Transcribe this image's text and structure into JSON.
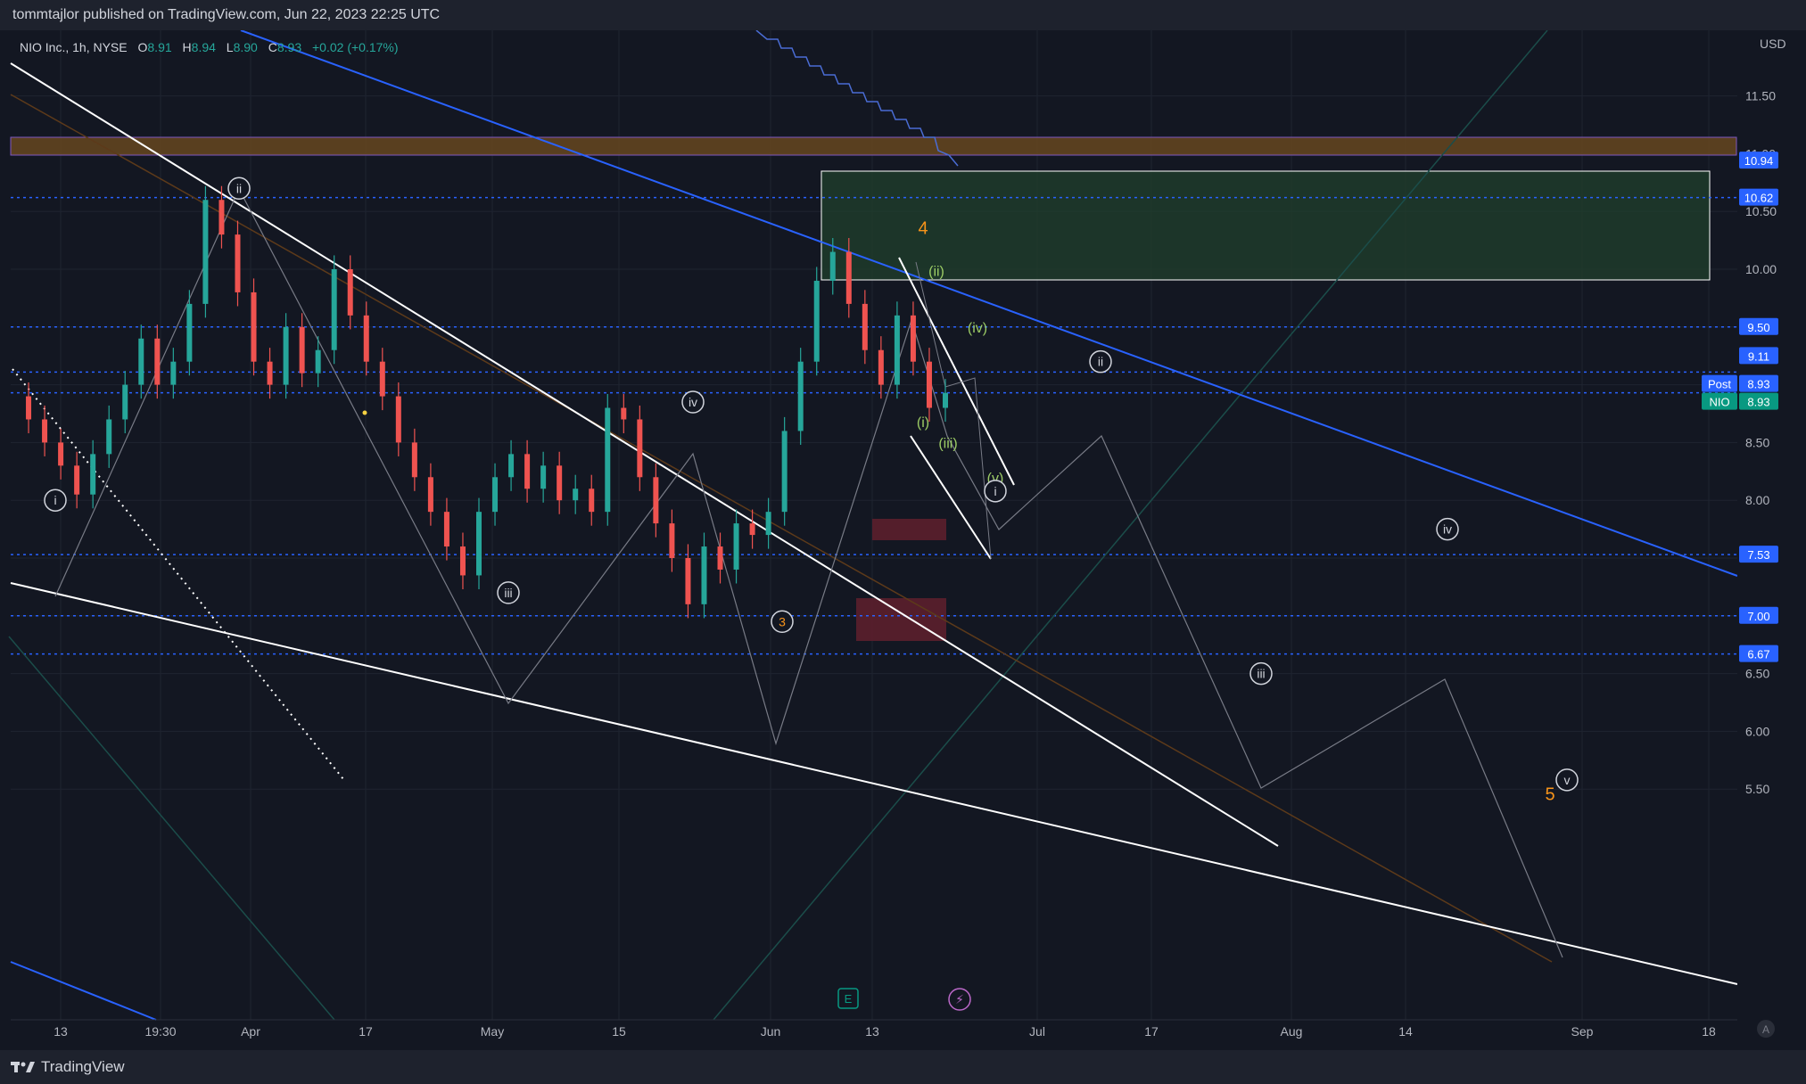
{
  "publisher_line": "tommtajlor published on TradingView.com, Jun 22, 2023 22:25 UTC",
  "footer_brand": "TradingView",
  "legend": {
    "symbol": "NIO Inc., 1h, NYSE",
    "o_label": "O",
    "o_value": "8.91",
    "h_label": "H",
    "h_value": "8.94",
    "l_label": "L",
    "l_value": "8.90",
    "c_label": "C",
    "c_value": "8.93",
    "change": "+0.02 (+0.17%)"
  },
  "colors": {
    "background": "#131722",
    "grid": "#1f2430",
    "up_candle": "#26a69a",
    "down_candle": "#ef5350",
    "trendline": "#ffffff",
    "channel_blue": "#2962ff",
    "level_dotted": "#2962ff",
    "resistance_band": "#6b4a1f",
    "demand_zone": "#1f3d2c",
    "supply_box": "#5c1f2c",
    "wave_orange": "#f7931a",
    "wave_green": "#9ccc65",
    "label_blue": "#2962ff",
    "label_teal": "#089981"
  },
  "chart_data": {
    "type": "line",
    "title": "",
    "currency": "USD",
    "ylim": [
      5.3,
      11.85
    ],
    "y_ticks": [
      "11.50",
      "11.00",
      "10.50",
      "10.00",
      "9.50",
      "9.00",
      "8.50",
      "8.00",
      "7.50",
      "7.00",
      "6.50",
      "6.00",
      "5.50"
    ],
    "x_ticks": [
      "13",
      "19:30",
      "Apr",
      "17",
      "May",
      "15",
      "Jun",
      "13",
      "Jul",
      "17",
      "Aug",
      "14",
      "Sep",
      "18"
    ],
    "series": [
      {
        "values": [
          8.9,
          8.7,
          8.5,
          8.3,
          8.05,
          8.4,
          8.7,
          9.0,
          9.4,
          9.0,
          9.2,
          9.7,
          10.6,
          10.3,
          9.8,
          9.2,
          9.0,
          9.5,
          9.1,
          9.3,
          10.0,
          9.6,
          9.2,
          8.9,
          8.5,
          8.2,
          7.9,
          7.6,
          7.35,
          7.9,
          8.2,
          8.4,
          8.1,
          8.3,
          8.0,
          8.1,
          7.9,
          8.8,
          8.7,
          8.2,
          7.8,
          7.5,
          7.1,
          7.6,
          7.4,
          7.8,
          7.7,
          7.9,
          8.6,
          9.2,
          9.9,
          10.15,
          9.7,
          9.3,
          9.0,
          9.6,
          9.2,
          8.8,
          8.93
        ]
      }
    ],
    "price_labels": [
      {
        "value": "10.94",
        "color": "#2962ff"
      },
      {
        "value": "10.62",
        "color": "#2962ff"
      },
      {
        "value": "9.50",
        "color": "#2962ff"
      },
      {
        "value": "9.11",
        "color": "#2962ff"
      },
      {
        "value": "8.93",
        "tag": "Post",
        "color": "#2962ff"
      },
      {
        "value": "8.93",
        "tag": "NIO",
        "color": "#089981"
      },
      {
        "value": "7.53",
        "color": "#2962ff"
      },
      {
        "value": "7.00",
        "color": "#2962ff"
      },
      {
        "value": "6.67",
        "color": "#2962ff"
      }
    ],
    "horizontal_levels": [
      10.62,
      9.5,
      9.11,
      8.93,
      7.53,
      7.0,
      6.67
    ],
    "wave_labels": [
      {
        "text": "i",
        "style": "circle",
        "x_date": "Mar 11",
        "price": 8.0
      },
      {
        "text": "ii",
        "style": "circle",
        "x_date": "Mar 30",
        "price": 10.7
      },
      {
        "text": "iii",
        "style": "circle",
        "x_date": "May 1",
        "price": 7.2
      },
      {
        "text": "iv",
        "style": "circle",
        "x_date": "May 22",
        "price": 8.85
      },
      {
        "text": "3",
        "style": "circle-orange",
        "x_date": "Jun 1",
        "price": 6.95
      },
      {
        "text": "4",
        "style": "orange",
        "x_date": "Jun 16",
        "price": 10.35
      },
      {
        "text": "(i)",
        "style": "green",
        "x_date": "Jun 16",
        "price": 8.68
      },
      {
        "text": "(ii)",
        "style": "green",
        "x_date": "Jun 17",
        "price": 9.99
      },
      {
        "text": "(iii)",
        "style": "green",
        "x_date": "Jun 18",
        "price": 8.5
      },
      {
        "text": "(iv)",
        "style": "green",
        "x_date": "Jun 20",
        "price": 9.5
      },
      {
        "text": "(v)",
        "style": "green",
        "x_date": "Jun 22",
        "price": 8.2
      },
      {
        "text": "i",
        "style": "circle",
        "x_date": "Jun 22",
        "price": 8.08
      },
      {
        "text": "ii",
        "style": "circle",
        "x_date": "Jul 10",
        "price": 9.2
      },
      {
        "text": "iii",
        "style": "circle",
        "x_date": "Jul 25",
        "price": 6.5
      },
      {
        "text": "iv",
        "style": "circle",
        "x_date": "Aug 17",
        "price": 7.75
      },
      {
        "text": "v",
        "style": "circle",
        "x_date": "Aug 29",
        "price": 5.58
      },
      {
        "text": "5",
        "style": "orange",
        "x_date": "Aug 27",
        "price": 5.45
      }
    ]
  }
}
